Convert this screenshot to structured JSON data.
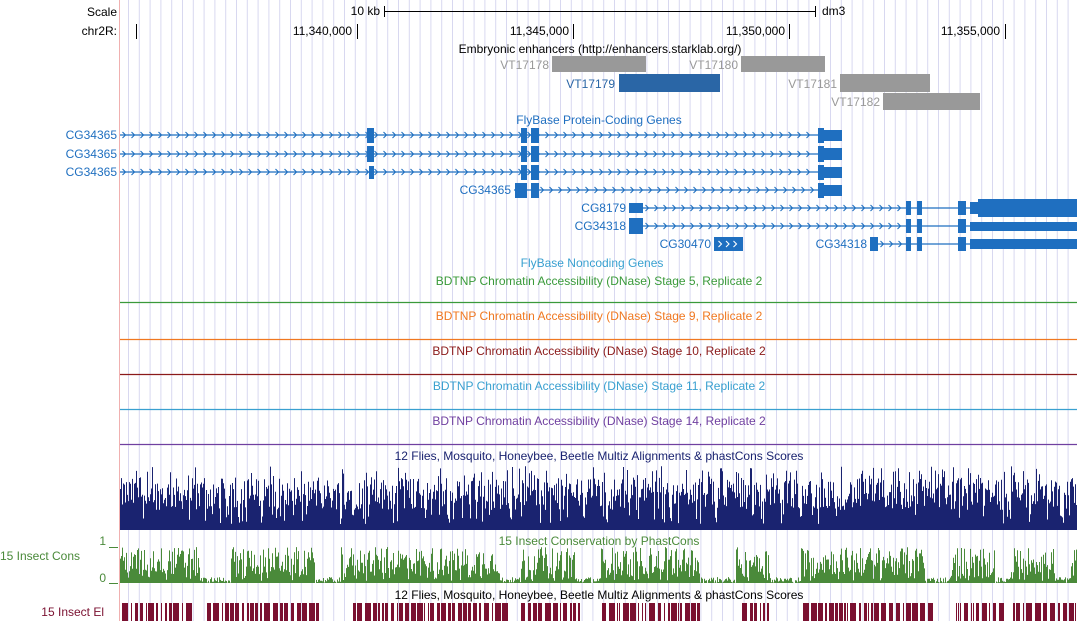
{
  "ruler": {
    "scale_label": "Scale",
    "chrom_label": "chr2R:",
    "scale_bar_label": "10 kb",
    "assembly": "dm3",
    "positions": [
      "11,340,000",
      "11,345,000",
      "11,350,000",
      "11,355,000"
    ]
  },
  "tracks": {
    "enhancers": {
      "title": "Embryonic enhancers (http://enhancers.starklab.org/)",
      "items": [
        "VT17178",
        "VT17179",
        "VT17180",
        "VT17181",
        "VT17182"
      ],
      "highlighted": "VT17179"
    },
    "flybase_coding": {
      "title": "FlyBase Protein-Coding Genes",
      "genes": [
        "CG34365",
        "CG34365",
        "CG34365",
        "CG34365",
        "CG8179",
        "CG34318",
        "CG30470",
        "CG34318"
      ]
    },
    "flybase_noncoding": {
      "title": "FlyBase Noncoding Genes"
    },
    "dnase": [
      {
        "title": "BDTNP Chromatin Accessibility (DNase) Stage 5, Replicate 2",
        "color": "#3a9a3a"
      },
      {
        "title": "BDTNP Chromatin Accessibility (DNase) Stage 9, Replicate 2",
        "color": "#f07820"
      },
      {
        "title": "BDTNP Chromatin Accessibility (DNase) Stage 10, Replicate 2",
        "color": "#8b1a1a"
      },
      {
        "title": "BDTNP Chromatin Accessibility (DNase) Stage 11, Replicate 2",
        "color": "#39a0d0"
      },
      {
        "title": "BDTNP Chromatin Accessibility (DNase) Stage 14, Replicate 2",
        "color": "#7040a0"
      }
    ],
    "multiz": {
      "title": "12 Flies, Mosquito, Honeybee, Beetle Multiz Alignments & phastCons Scores"
    },
    "phastcons": {
      "title": "15 Insect Conservation by PhastCons",
      "side_label": "15 Insect Cons",
      "max_label": "1",
      "min_label": "0"
    },
    "elements": {
      "title": "12 Flies, Mosquito, Honeybee, Beetle Multiz Alignments & phastCons Scores",
      "side_label": "15 Insect El"
    }
  },
  "colors": {
    "gene_blue": "#1f6fc0",
    "enhancer_gray": "#999999",
    "enhancer_highlight": "#2a66a6",
    "multiz_navy": "#1a2370",
    "phastcons_green": "#4a8a3a",
    "elements_maroon": "#7a1030",
    "grid_line": "#d8d8f0",
    "left_margin_line": "#f0b0b0"
  }
}
